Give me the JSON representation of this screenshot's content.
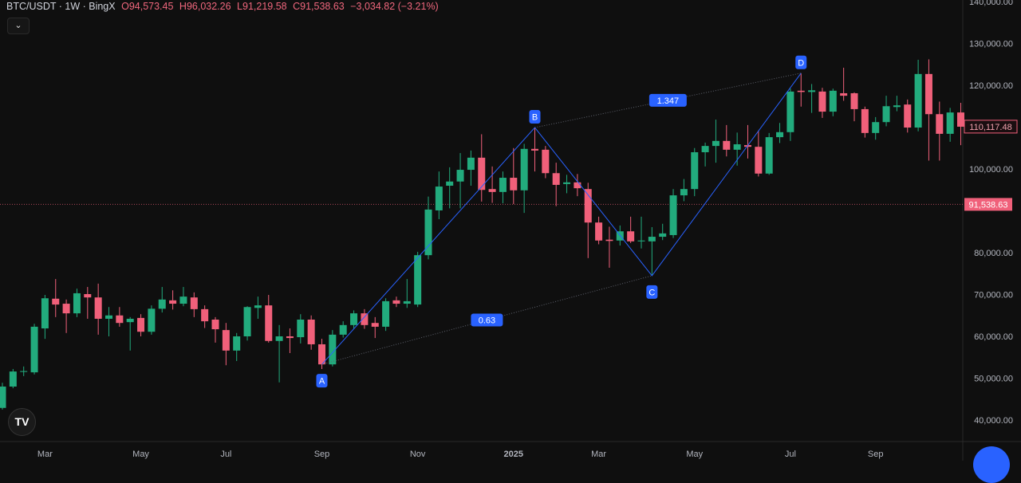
{
  "header": {
    "symbol": "BTC/USDT · 1W · BingX",
    "open": "O94,573.45",
    "high": "H96,032.26",
    "low": "L91,219.58",
    "close": "C91,538.63",
    "change": "−3,034.82 (−3.21%)",
    "collapse_icon": "chevron-down-icon"
  },
  "colors": {
    "up": "#26a69a",
    "up_body": "#22ab7d",
    "down": "#f0607a",
    "pattern": "#2962ff",
    "background": "#0f0f0f"
  },
  "chart_data": {
    "type": "candlestick",
    "title": "",
    "ylim": [
      38000,
      141000
    ],
    "y_ticks": [
      "140,000.00",
      "130,000.00",
      "120,000.00",
      "100,000.00",
      "80,000.00",
      "70,000.00",
      "60,000.00",
      "50,000.00",
      "40,000.00"
    ],
    "y_tick_values": [
      140000,
      130000,
      120000,
      100000,
      80000,
      70000,
      60000,
      50000,
      40000
    ],
    "x_ticks": [
      {
        "label": "Mar",
        "candle": 4
      },
      {
        "label": "May",
        "candle": 13
      },
      {
        "label": "Jul",
        "candle": 21
      },
      {
        "label": "Sep",
        "candle": 30
      },
      {
        "label": "Nov",
        "candle": 39
      },
      {
        "label": "2025",
        "candle": 48,
        "bold": true
      },
      {
        "label": "Mar",
        "candle": 56
      },
      {
        "label": "May",
        "candle": 65
      },
      {
        "label": "Jul",
        "candle": 74
      },
      {
        "label": "Sep",
        "candle": 82
      }
    ],
    "current_price": {
      "value": 91538.63,
      "label": "91,538.63"
    },
    "marker_price": {
      "value": 110117.48,
      "label": "110,117.48"
    },
    "candles_ohlc": [
      [
        42900,
        48900,
        42500,
        48000
      ],
      [
        48000,
        52200,
        47600,
        51600
      ],
      [
        51500,
        52800,
        50500,
        51700
      ],
      [
        51400,
        63000,
        50900,
        62300
      ],
      [
        61900,
        69900,
        59400,
        69100
      ],
      [
        69000,
        73700,
        64600,
        67600
      ],
      [
        67800,
        68800,
        60800,
        65500
      ],
      [
        65500,
        71400,
        64600,
        70300
      ],
      [
        70100,
        71800,
        64200,
        69300
      ],
      [
        69300,
        72600,
        60400,
        64200
      ],
      [
        64200,
        67000,
        60000,
        65000
      ],
      [
        65000,
        67000,
        62300,
        63200
      ],
      [
        63400,
        64600,
        56600,
        64200
      ],
      [
        64400,
        65300,
        60000,
        61100
      ],
      [
        61100,
        67400,
        60400,
        66600
      ],
      [
        66600,
        71800,
        65700,
        68800
      ],
      [
        68600,
        71000,
        66400,
        67800
      ],
      [
        67800,
        71800,
        67200,
        69500
      ],
      [
        69300,
        70500,
        64600,
        66500
      ],
      [
        66500,
        67400,
        62000,
        63600
      ],
      [
        64000,
        64600,
        58500,
        61700
      ],
      [
        61500,
        63200,
        53100,
        56600
      ],
      [
        56600,
        60800,
        54100,
        60000
      ],
      [
        60000,
        67200,
        59000,
        67000
      ],
      [
        66800,
        69500,
        64200,
        67400
      ],
      [
        67400,
        69900,
        58500,
        58900
      ],
      [
        58900,
        62700,
        49000,
        60000
      ],
      [
        60000,
        61900,
        56000,
        59600
      ],
      [
        59800,
        65300,
        58300,
        64000
      ],
      [
        64000,
        65000,
        56800,
        58100
      ],
      [
        58100,
        59400,
        52200,
        53300
      ],
      [
        53300,
        61500,
        52800,
        60400
      ],
      [
        60400,
        63600,
        59700,
        62700
      ],
      [
        62700,
        66200,
        61900,
        65500
      ],
      [
        65500,
        66500,
        61800,
        62700
      ],
      [
        63200,
        64600,
        59600,
        62300
      ],
      [
        62300,
        69100,
        61300,
        68400
      ],
      [
        68600,
        69500,
        67000,
        67800
      ],
      [
        67800,
        73700,
        66800,
        68400
      ],
      [
        67600,
        80200,
        67000,
        79400
      ],
      [
        79400,
        93400,
        78400,
        90300
      ],
      [
        90100,
        99400,
        88000,
        95800
      ],
      [
        96000,
        100400,
        90600,
        97000
      ],
      [
        97000,
        103800,
        90600,
        99800
      ],
      [
        99800,
        104400,
        96000,
        102700
      ],
      [
        102700,
        108300,
        92200,
        95000
      ],
      [
        95200,
        100600,
        91900,
        94500
      ],
      [
        94500,
        99400,
        91800,
        97900
      ],
      [
        97900,
        105000,
        91600,
        94900
      ],
      [
        94900,
        106000,
        89500,
        104800
      ],
      [
        104800,
        109900,
        99400,
        104400
      ],
      [
        104600,
        105500,
        97800,
        99000
      ],
      [
        99000,
        101500,
        91100,
        96200
      ],
      [
        96400,
        98600,
        94200,
        96800
      ],
      [
        96800,
        98800,
        93500,
        95400
      ],
      [
        95200,
        96700,
        78700,
        87200
      ],
      [
        87200,
        88600,
        82000,
        82900
      ],
      [
        83100,
        86200,
        76400,
        82800
      ],
      [
        82900,
        86500,
        81700,
        85100
      ],
      [
        85100,
        88600,
        82300,
        82700
      ],
      [
        82700,
        88600,
        81000,
        82900
      ],
      [
        82700,
        86100,
        74500,
        83800
      ],
      [
        83800,
        86900,
        83000,
        84600
      ],
      [
        84200,
        95200,
        83500,
        93700
      ],
      [
        93700,
        97600,
        92300,
        95200
      ],
      [
        95200,
        105000,
        93500,
        104000
      ],
      [
        104000,
        106300,
        100600,
        105500
      ],
      [
        105500,
        111800,
        101500,
        106700
      ],
      [
        106700,
        110500,
        103000,
        104600
      ],
      [
        104600,
        108700,
        100800,
        105900
      ],
      [
        105700,
        110500,
        102500,
        105300
      ],
      [
        105300,
        109200,
        98200,
        98900
      ],
      [
        98900,
        108600,
        98600,
        107600
      ],
      [
        107600,
        111000,
        106200,
        108800
      ],
      [
        108800,
        119200,
        106700,
        118500
      ],
      [
        118700,
        122900,
        114900,
        118400
      ],
      [
        118400,
        120300,
        113400,
        118800
      ],
      [
        118500,
        119400,
        112200,
        113700
      ],
      [
        113700,
        119200,
        112600,
        118700
      ],
      [
        118100,
        124200,
        116300,
        117500
      ],
      [
        118100,
        118300,
        111400,
        114300
      ],
      [
        114300,
        114900,
        107500,
        108600
      ],
      [
        108600,
        112400,
        107000,
        111200
      ],
      [
        111200,
        117500,
        110200,
        115000
      ],
      [
        114800,
        117500,
        113800,
        115200
      ],
      [
        115400,
        116600,
        108700,
        109900
      ],
      [
        109900,
        126100,
        109000,
        122700
      ],
      [
        122700,
        126200,
        102000,
        113100
      ],
      [
        113100,
        116100,
        102000,
        108400
      ],
      [
        108400,
        114600,
        106500,
        113500
      ],
      [
        113500,
        115800,
        105700,
        110100
      ]
    ],
    "pattern": {
      "type": "XABCD",
      "points": [
        {
          "label": "A",
          "candle": 30,
          "price": 53300
        },
        {
          "label": "B",
          "candle": 50,
          "price": 109900
        },
        {
          "label": "C",
          "candle": 61,
          "price": 74500
        },
        {
          "label": "D",
          "candle": 75,
          "price": 122900
        }
      ],
      "ratios": [
        {
          "label": "0.63",
          "between": [
            "A",
            "C"
          ]
        },
        {
          "label": "1.347",
          "between": [
            "B",
            "D"
          ]
        }
      ]
    }
  },
  "footer": {
    "logo": "TV"
  }
}
